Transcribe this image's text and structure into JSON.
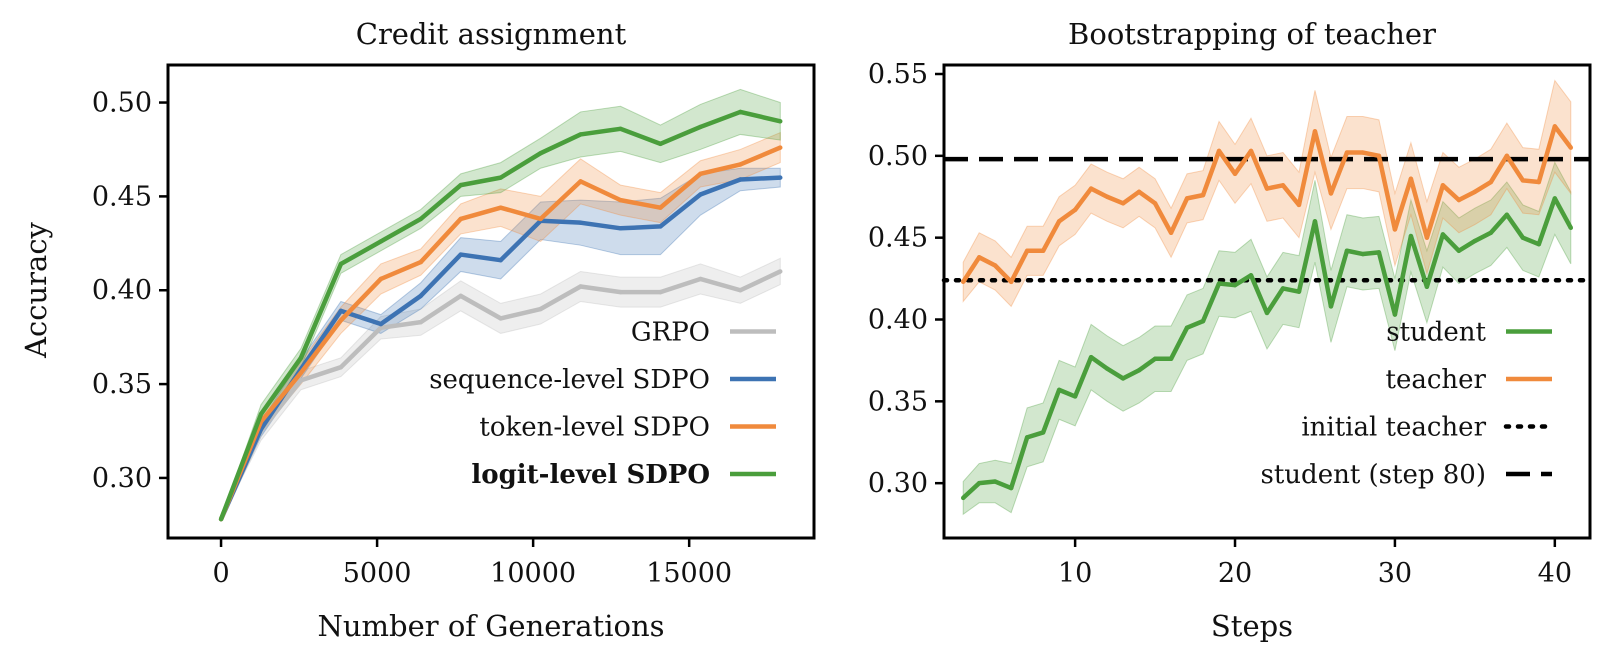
{
  "colors": {
    "grpo": "#bdbdbd",
    "sequence": "#3d73b3",
    "token": "#f08a3c",
    "logit": "#4a9e3c",
    "student": "#4a9e3c",
    "teacher": "#f08a3c",
    "reference": "#000000"
  },
  "chart_data": [
    {
      "type": "line",
      "title": "Credit assignment",
      "xlabel": "Number of Generations",
      "ylabel": "Accuracy",
      "xlim": [
        -1700,
        19000
      ],
      "ylim": [
        0.268,
        0.52
      ],
      "xticks": [
        0,
        5000,
        10000,
        15000
      ],
      "yticks": [
        0.3,
        0.35,
        0.4,
        0.45,
        0.5
      ],
      "xtick_labels": [
        "0",
        "5000",
        "10000",
        "15000"
      ],
      "ytick_labels": [
        "0.30",
        "0.35",
        "0.40",
        "0.45",
        "0.50"
      ],
      "legend_position": "lower-right",
      "x": [
        0,
        1280,
        2560,
        3840,
        5120,
        6400,
        7680,
        8960,
        10240,
        11520,
        12800,
        14080,
        15360,
        16640,
        17920
      ],
      "series": [
        {
          "name": "GRPO",
          "color_key": "grpo",
          "bold": false,
          "values": [
            0.278,
            0.325,
            0.352,
            0.359,
            0.38,
            0.383,
            0.397,
            0.385,
            0.39,
            0.402,
            0.399,
            0.399,
            0.406,
            0.4,
            0.41
          ],
          "band": [
            0.0,
            0.005,
            0.005,
            0.005,
            0.006,
            0.007,
            0.008,
            0.008,
            0.008,
            0.008,
            0.008,
            0.008,
            0.008,
            0.007,
            0.007
          ]
        },
        {
          "name": "sequence-level SDPO",
          "color_key": "sequence",
          "bold": false,
          "values": [
            0.278,
            0.326,
            0.358,
            0.389,
            0.382,
            0.397,
            0.419,
            0.416,
            0.437,
            0.436,
            0.433,
            0.434,
            0.451,
            0.459,
            0.46
          ],
          "band": [
            0.0,
            0.004,
            0.005,
            0.005,
            0.005,
            0.007,
            0.009,
            0.01,
            0.01,
            0.012,
            0.014,
            0.015,
            0.011,
            0.006,
            0.005
          ]
        },
        {
          "name": "token-level SDPO",
          "color_key": "token",
          "bold": false,
          "values": [
            0.278,
            0.33,
            0.356,
            0.384,
            0.406,
            0.415,
            0.438,
            0.444,
            0.438,
            0.458,
            0.448,
            0.444,
            0.462,
            0.467,
            0.476
          ],
          "band": [
            0.0,
            0.005,
            0.006,
            0.007,
            0.008,
            0.007,
            0.008,
            0.01,
            0.012,
            0.012,
            0.008,
            0.008,
            0.007,
            0.008,
            0.008
          ]
        },
        {
          "name": "logit-level SDPO",
          "color_key": "logit",
          "bold": true,
          "values": [
            0.278,
            0.334,
            0.364,
            0.414,
            0.426,
            0.438,
            0.456,
            0.46,
            0.473,
            0.483,
            0.486,
            0.478,
            0.487,
            0.495,
            0.49
          ],
          "band": [
            0.0,
            0.005,
            0.005,
            0.005,
            0.005,
            0.005,
            0.006,
            0.008,
            0.008,
            0.012,
            0.012,
            0.01,
            0.012,
            0.012,
            0.01
          ]
        }
      ]
    },
    {
      "type": "line",
      "title": "Bootstrapping of teacher",
      "xlabel": "Steps",
      "ylabel": "",
      "xlim": [
        1.8,
        42.2
      ],
      "ylim": [
        0.2665,
        0.5555
      ],
      "xticks": [
        10,
        20,
        30,
        40
      ],
      "yticks": [
        0.3,
        0.35,
        0.4,
        0.45,
        0.5,
        0.55
      ],
      "xtick_labels": [
        "10",
        "20",
        "30",
        "40"
      ],
      "ytick_labels": [
        "0.30",
        "0.35",
        "0.40",
        "0.45",
        "0.50",
        "0.55"
      ],
      "legend_position": "lower-right",
      "x": [
        3,
        4,
        5,
        6,
        7,
        8,
        9,
        10,
        11,
        12,
        13,
        14,
        15,
        16,
        17,
        18,
        19,
        20,
        21,
        22,
        23,
        24,
        25,
        26,
        27,
        28,
        29,
        30,
        31,
        32,
        33,
        34,
        35,
        36,
        37,
        38,
        39,
        40,
        41
      ],
      "series": [
        {
          "name": "student",
          "color_key": "student",
          "values": [
            0.291,
            0.3,
            0.301,
            0.297,
            0.328,
            0.331,
            0.357,
            0.353,
            0.377,
            0.37,
            0.364,
            0.369,
            0.376,
            0.376,
            0.395,
            0.399,
            0.422,
            0.421,
            0.427,
            0.404,
            0.419,
            0.417,
            0.46,
            0.408,
            0.442,
            0.44,
            0.441,
            0.403,
            0.451,
            0.42,
            0.452,
            0.442,
            0.448,
            0.453,
            0.464,
            0.45,
            0.446,
            0.474,
            0.456
          ],
          "band": [
            0.01,
            0.012,
            0.013,
            0.015,
            0.018,
            0.018,
            0.018,
            0.018,
            0.02,
            0.02,
            0.02,
            0.02,
            0.02,
            0.02,
            0.02,
            0.02,
            0.02,
            0.02,
            0.022,
            0.022,
            0.022,
            0.022,
            0.025,
            0.022,
            0.022,
            0.022,
            0.022,
            0.022,
            0.022,
            0.022,
            0.02,
            0.02,
            0.02,
            0.02,
            0.02,
            0.02,
            0.02,
            0.022,
            0.022
          ]
        },
        {
          "name": "teacher",
          "color_key": "teacher",
          "values": [
            0.423,
            0.438,
            0.433,
            0.423,
            0.442,
            0.442,
            0.46,
            0.467,
            0.48,
            0.475,
            0.471,
            0.478,
            0.471,
            0.453,
            0.474,
            0.476,
            0.503,
            0.489,
            0.503,
            0.48,
            0.482,
            0.47,
            0.515,
            0.477,
            0.502,
            0.502,
            0.5,
            0.455,
            0.486,
            0.45,
            0.482,
            0.473,
            0.478,
            0.484,
            0.5,
            0.485,
            0.484,
            0.518,
            0.505
          ],
          "band": [
            0.012,
            0.015,
            0.015,
            0.015,
            0.015,
            0.015,
            0.015,
            0.015,
            0.015,
            0.015,
            0.015,
            0.015,
            0.015,
            0.015,
            0.015,
            0.015,
            0.018,
            0.018,
            0.02,
            0.02,
            0.02,
            0.02,
            0.025,
            0.022,
            0.022,
            0.022,
            0.022,
            0.022,
            0.022,
            0.022,
            0.02,
            0.02,
            0.02,
            0.02,
            0.02,
            0.02,
            0.02,
            0.028,
            0.028
          ]
        }
      ],
      "reference_lines": [
        {
          "name": "initial teacher",
          "y": 0.424,
          "style": "dotted"
        },
        {
          "name": "student (step 80)",
          "y": 0.498,
          "style": "dashed"
        }
      ]
    }
  ]
}
